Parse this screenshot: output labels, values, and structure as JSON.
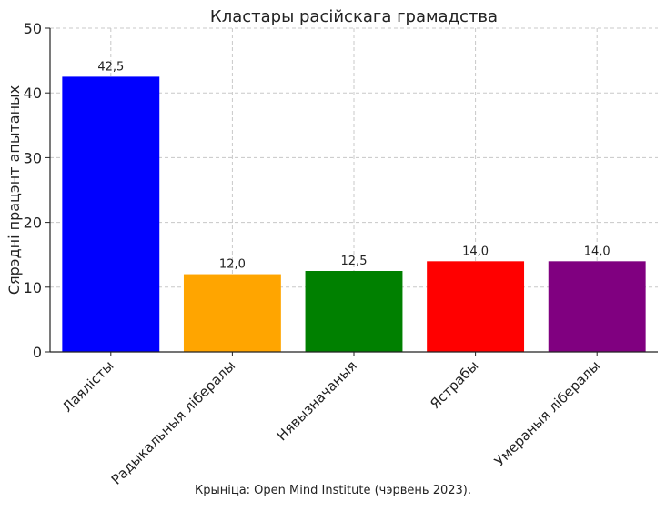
{
  "chart_data": {
    "type": "bar",
    "title": "Кластары расійскага грамадства",
    "xlabel": "",
    "ylabel": "Сярэдні працэнт апытаных",
    "categories": [
      "Лаялісты",
      "Радыкальныя лібералы",
      "Нявызначаныя",
      "Ястрабы",
      "Умераныя лібералы"
    ],
    "values": [
      42.5,
      12.0,
      12.5,
      14.0,
      14.0
    ],
    "value_labels": [
      "42,5",
      "12,0",
      "12,5",
      "14,0",
      "14,0"
    ],
    "colors": [
      "#0000ff",
      "#ffa500",
      "#008000",
      "#ff0000",
      "#800080"
    ],
    "ylim": [
      0,
      50
    ],
    "yticks": [
      0,
      10,
      20,
      30,
      40,
      50
    ],
    "grid": true,
    "legend": "none"
  },
  "source_note": "Крыніца: Open Mind Institute (чэрвень 2023)."
}
